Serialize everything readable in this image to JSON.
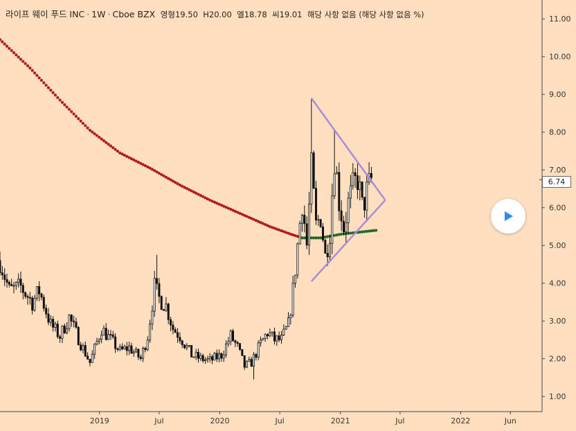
{
  "header": {
    "symbol": "라이프 웨이 푸드 INC",
    "interval": "1W",
    "exchange": "Cboe BZX",
    "open_label": "영형",
    "open_value": "19.50",
    "high_label": "H",
    "high_value": "20.00",
    "low_label": "엘",
    "low_value": "18.78",
    "close_label": "씨",
    "close_value": "19.01",
    "change_text": "해당 사항 없음 (해당 사항 없음 %)"
  },
  "last_price_label": "6.74",
  "colors": {
    "background": "#ffdfbf",
    "candle": "#111111",
    "ma_long": "#b31b1b",
    "ma_short": "#1e6b2a",
    "triangle": "#a98bd8",
    "play": "#2a8df1"
  },
  "icons": {
    "play": "play-icon"
  },
  "chart_data": {
    "type": "candlestick",
    "y_axis": {
      "position": "right",
      "ylim": [
        0.6,
        11.5
      ],
      "ticks": [
        1.0,
        2.0,
        3.0,
        4.0,
        5.0,
        6.0,
        7.0,
        8.0,
        9.0,
        10.0,
        11.0
      ],
      "tick_labels": [
        "1.00",
        "2.00",
        "3.00",
        "4.00",
        "5.00",
        "6.00",
        "7.00",
        "8.00",
        "9.00",
        "10.00",
        "11.00"
      ]
    },
    "x_axis": {
      "range": [
        "2018-03-05",
        "2022-09-05"
      ],
      "ticks": [
        "2019-01-01",
        "2019-07-01",
        "2020-01-01",
        "2020-07-01",
        "2021-01-01",
        "2021-07-01",
        "2022-01-01",
        "2022-06-01"
      ],
      "tick_labels": [
        "2019",
        "Jul",
        "2020",
        "Jul",
        "2021",
        "Jul",
        "2022",
        "Jun"
      ]
    },
    "last_price": 6.74,
    "anchors": [
      [
        "2018-03-05",
        4.6
      ],
      [
        "2018-04-02",
        3.8
      ],
      [
        "2018-05-07",
        3.9
      ],
      [
        "2018-06-11",
        3.5
      ],
      [
        "2018-07-02",
        3.8
      ],
      [
        "2018-08-06",
        2.9
      ],
      [
        "2018-09-03",
        2.6
      ],
      [
        "2018-10-01",
        3.1
      ],
      [
        "2018-11-05",
        2.4
      ],
      [
        "2018-12-03",
        1.9
      ],
      [
        "2019-01-07",
        2.8
      ],
      [
        "2019-02-04",
        2.5
      ],
      [
        "2019-03-04",
        2.2
      ],
      [
        "2019-04-01",
        2.3
      ],
      [
        "2019-05-06",
        2.0
      ],
      [
        "2019-05-27",
        2.6
      ],
      [
        "2019-06-17",
        3.9
      ],
      [
        "2019-07-01",
        3.6
      ],
      [
        "2019-07-22",
        3.4
      ],
      [
        "2019-08-12",
        2.8
      ],
      [
        "2019-09-02",
        2.6
      ],
      [
        "2019-10-07",
        2.1
      ],
      [
        "2019-11-04",
        2.0
      ],
      [
        "2019-12-02",
        1.95
      ],
      [
        "2020-01-06",
        2.1
      ],
      [
        "2020-02-03",
        2.6
      ],
      [
        "2020-02-24",
        2.3
      ],
      [
        "2020-03-16",
        1.8
      ],
      [
        "2020-04-06",
        1.9
      ],
      [
        "2020-05-04",
        2.4
      ],
      [
        "2020-05-25",
        2.7
      ],
      [
        "2020-06-15",
        2.5
      ],
      [
        "2020-07-06",
        2.5
      ],
      [
        "2020-07-27",
        2.9
      ],
      [
        "2020-08-10",
        3.8
      ],
      [
        "2020-08-24",
        5.0
      ],
      [
        "2020-09-07",
        6.2
      ],
      [
        "2020-09-21",
        5.0
      ],
      [
        "2020-10-05",
        7.0
      ],
      [
        "2020-10-19",
        5.5
      ],
      [
        "2020-11-02",
        5.8
      ],
      [
        "2020-11-16",
        4.7
      ],
      [
        "2020-11-30",
        5.4
      ],
      [
        "2020-12-14",
        7.4
      ],
      [
        "2020-12-28",
        6.2
      ],
      [
        "2021-01-11",
        5.5
      ],
      [
        "2021-01-25",
        6.1
      ],
      [
        "2021-02-08",
        6.5
      ],
      [
        "2021-02-22",
        6.8
      ],
      [
        "2021-03-08",
        6.0
      ],
      [
        "2021-03-22",
        6.4
      ],
      [
        "2021-04-05",
        6.74
      ]
    ],
    "spikes": [
      {
        "date": "2020-10-05",
        "high": 8.9
      },
      {
        "date": "2020-12-14",
        "high": 8.05
      },
      {
        "date": "2019-06-24",
        "high": 4.75
      },
      {
        "date": "2020-04-13",
        "high": 1.45
      }
    ],
    "ma_long": [
      [
        "2018-03-05",
        10.45
      ],
      [
        "2018-06-04",
        9.7
      ],
      [
        "2018-09-03",
        8.85
      ],
      [
        "2018-12-03",
        8.05
      ],
      [
        "2019-03-04",
        7.45
      ],
      [
        "2019-06-03",
        7.05
      ],
      [
        "2019-09-02",
        6.6
      ],
      [
        "2019-12-02",
        6.2
      ],
      [
        "2020-03-02",
        5.85
      ],
      [
        "2020-06-01",
        5.5
      ],
      [
        "2020-08-03",
        5.3
      ],
      [
        "2020-09-07",
        5.2
      ],
      [
        "2020-11-02",
        5.2
      ]
    ],
    "ma_short": [
      [
        "2020-09-07",
        5.2
      ],
      [
        "2020-11-02",
        5.2
      ],
      [
        "2021-01-04",
        5.3
      ],
      [
        "2021-04-19",
        5.4
      ]
    ],
    "triangle": {
      "upper": [
        [
          "2020-10-05",
          8.9
        ],
        [
          "2021-05-17",
          6.2
        ]
      ],
      "lower": [
        [
          "2020-10-05",
          4.05
        ],
        [
          "2021-05-17",
          6.2
        ]
      ]
    }
  }
}
